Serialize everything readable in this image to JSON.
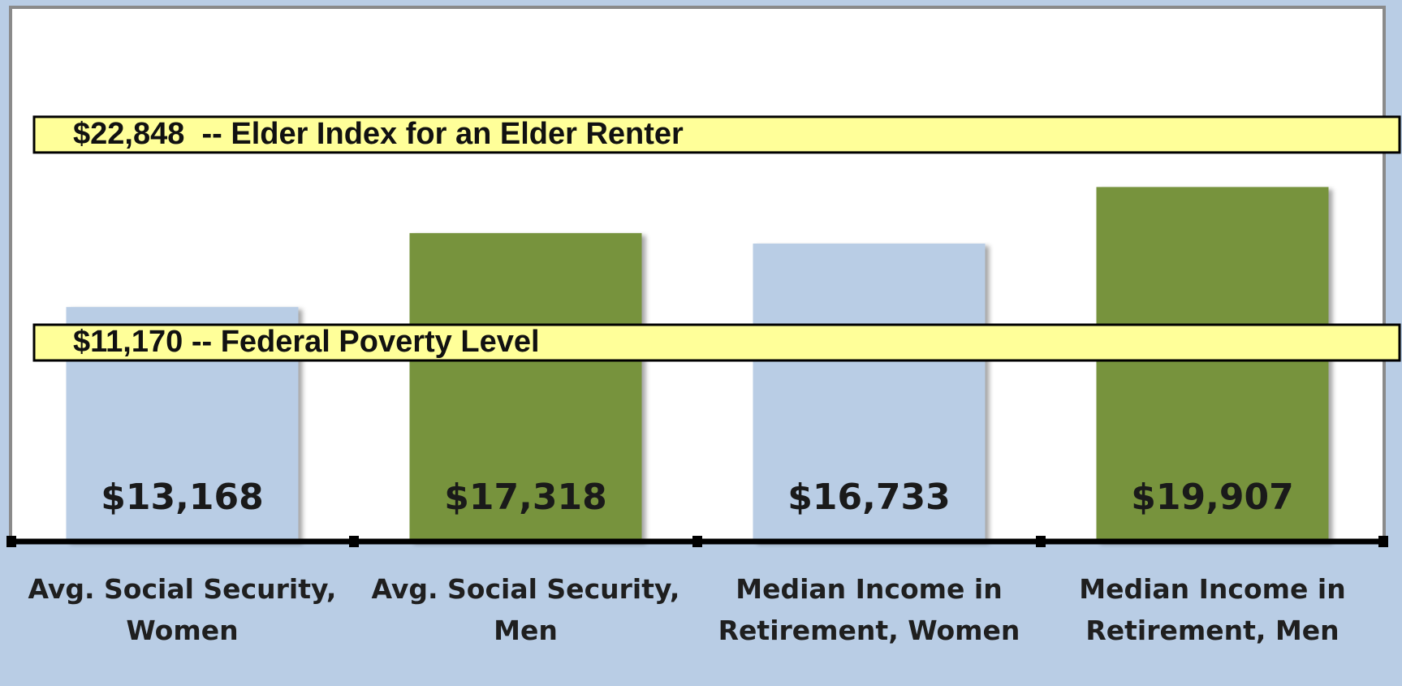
{
  "chart_data": {
    "type": "bar",
    "categories": [
      "Avg. Social Security, Women",
      "Avg. Social Security, Men",
      "Median Income in Retirement, Women",
      "Median Income in Retirement, Men"
    ],
    "values": [
      13168,
      17318,
      16733,
      19907
    ],
    "value_labels": [
      "$13,168",
      "$17,318",
      "$16,733",
      "$19,907"
    ],
    "colors": [
      "#b9cde5",
      "#77933c",
      "#b9cde5",
      "#77933c"
    ],
    "ylim": [
      0,
      30000
    ],
    "reference_lines": [
      {
        "value": 22848,
        "label": "$22,848  -- Elder Index for an Elder Renter"
      },
      {
        "value": 11170,
        "label": "$11,170 -- Federal Poverty Level"
      }
    ]
  }
}
